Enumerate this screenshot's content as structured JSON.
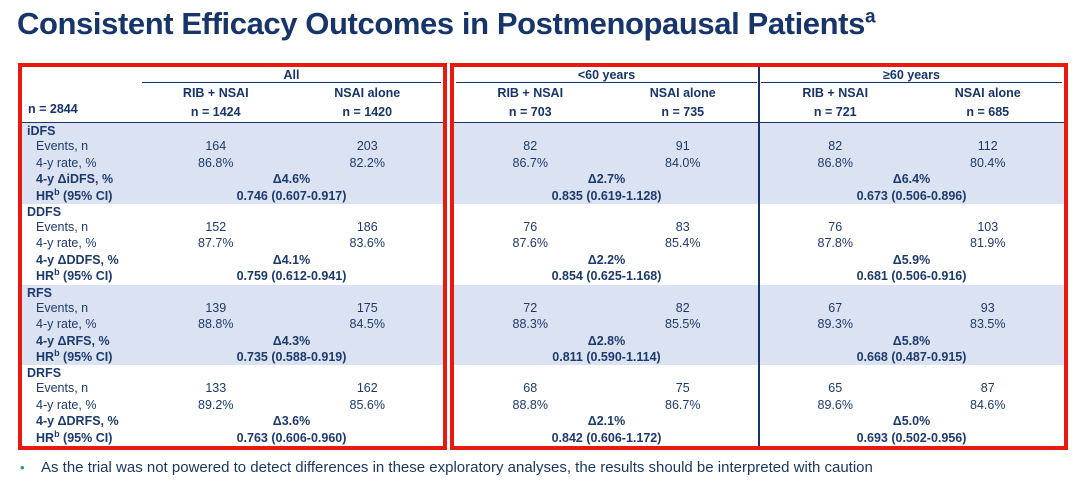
{
  "title": {
    "text": "Consistent Efficacy Outcomes in Postmenopausal Patients",
    "sup": "a"
  },
  "colors": {
    "navy": "#17356b",
    "band_blue": "#dbe3f3",
    "highlight_red": "#e8190e",
    "bullet_teal": "#2e9688"
  },
  "table": {
    "n_total": "n = 2844",
    "groups": [
      {
        "label": "All",
        "arms": [
          {
            "name": "RIB + NSAI",
            "n": "n = 1424"
          },
          {
            "name": "NSAI alone",
            "n": "n = 1420"
          }
        ]
      },
      {
        "label": "<60 years",
        "arms": [
          {
            "name": "RIB + NSAI",
            "n": "n = 703"
          },
          {
            "name": "NSAI alone",
            "n": "n = 735"
          }
        ]
      },
      {
        "label": "≥60 years",
        "arms": [
          {
            "name": "RIB + NSAI",
            "n": "n = 721"
          },
          {
            "name": "NSAI alone",
            "n": "n = 685"
          }
        ]
      }
    ],
    "shared_labels": {
      "events": "Events, n",
      "rate": "4-y rate, %",
      "hr_prefix": "HR",
      "hr_sup": "b",
      "hr_suffix": " (95% CI)"
    },
    "blocks": [
      {
        "name": "iDFS",
        "delta_label": "4-y ΔiDFS, %",
        "all": {
          "events": [
            "164",
            "203"
          ],
          "rates": [
            "86.8%",
            "82.2%"
          ],
          "delta": "Δ4.6%",
          "hr": "0.746 (0.607-0.917)"
        },
        "lt60": {
          "events": [
            "82",
            "91"
          ],
          "rates": [
            "86.7%",
            "84.0%"
          ],
          "delta": "Δ2.7%",
          "hr": "0.835 (0.619-1.128)"
        },
        "ge60": {
          "events": [
            "82",
            "112"
          ],
          "rates": [
            "86.8%",
            "80.4%"
          ],
          "delta": "Δ6.4%",
          "hr": "0.673 (0.506-0.896)"
        }
      },
      {
        "name": "DDFS",
        "delta_label": "4-y ΔDDFS, %",
        "all": {
          "events": [
            "152",
            "186"
          ],
          "rates": [
            "87.7%",
            "83.6%"
          ],
          "delta": "Δ4.1%",
          "hr": "0.759 (0.612-0.941)"
        },
        "lt60": {
          "events": [
            "76",
            "83"
          ],
          "rates": [
            "87.6%",
            "85.4%"
          ],
          "delta": "Δ2.2%",
          "hr": "0.854 (0.625-1.168)"
        },
        "ge60": {
          "events": [
            "76",
            "103"
          ],
          "rates": [
            "87.8%",
            "81.9%"
          ],
          "delta": "Δ5.9%",
          "hr": "0.681 (0.506-0.916)"
        }
      },
      {
        "name": "RFS",
        "delta_label": "4-y ΔRFS, %",
        "all": {
          "events": [
            "139",
            "175"
          ],
          "rates": [
            "88.8%",
            "84.5%"
          ],
          "delta": "Δ4.3%",
          "hr": "0.735 (0.588-0.919)"
        },
        "lt60": {
          "events": [
            "72",
            "82"
          ],
          "rates": [
            "88.3%",
            "85.5%"
          ],
          "delta": "Δ2.8%",
          "hr": "0.811 (0.590-1.114)"
        },
        "ge60": {
          "events": [
            "67",
            "93"
          ],
          "rates": [
            "89.3%",
            "83.5%"
          ],
          "delta": "Δ5.8%",
          "hr": "0.668 (0.487-0.915)"
        }
      },
      {
        "name": "DRFS",
        "delta_label": "4-y ΔDRFS, %",
        "all": {
          "events": [
            "133",
            "162"
          ],
          "rates": [
            "89.2%",
            "85.6%"
          ],
          "delta": "Δ3.6%",
          "hr": "0.763 (0.606-0.960)"
        },
        "lt60": {
          "events": [
            "68",
            "75"
          ],
          "rates": [
            "88.8%",
            "86.7%"
          ],
          "delta": "Δ2.1%",
          "hr": "0.842 (0.606-1.172)"
        },
        "ge60": {
          "events": [
            "65",
            "87"
          ],
          "rates": [
            "89.6%",
            "84.6%"
          ],
          "delta": "Δ5.0%",
          "hr": "0.693 (0.502-0.956)"
        }
      }
    ]
  },
  "footer": {
    "bullet": "•",
    "text": "As the trial was not powered to detect differences in these exploratory analyses, the results should be interpreted with caution"
  }
}
